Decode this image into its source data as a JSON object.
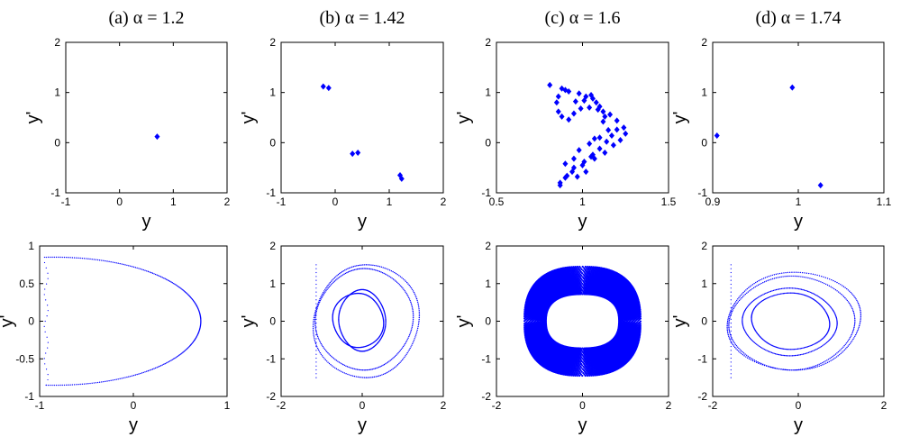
{
  "chart_data": [
    {
      "type": "scatter",
      "title": "(a) α = 1.2",
      "xlabel": "y",
      "ylabel": "y'",
      "xlim": [
        -1,
        2
      ],
      "ylim": [
        -1,
        2
      ],
      "xticks": [
        "-1",
        "0",
        "1",
        "2"
      ],
      "yticks": [
        "-1",
        "0",
        "1",
        "2"
      ],
      "grid": false,
      "marker": "diamond",
      "color": "#0000ff",
      "points": [
        [
          0.7,
          0.12
        ]
      ]
    },
    {
      "type": "scatter",
      "title": "(b) α = 1.42",
      "xlabel": "y",
      "ylabel": "y'",
      "xlim": [
        -1,
        2
      ],
      "ylim": [
        -1,
        2
      ],
      "xticks": [
        "-1",
        "0",
        "1",
        "2"
      ],
      "yticks": [
        "-1",
        "0",
        "1",
        "2"
      ],
      "grid": false,
      "marker": "diamond",
      "color": "#0000ff",
      "points": [
        [
          -0.22,
          1.12
        ],
        [
          -0.12,
          1.09
        ],
        [
          0.32,
          -0.22
        ],
        [
          0.42,
          -0.2
        ],
        [
          1.2,
          -0.65
        ],
        [
          1.23,
          -0.72
        ]
      ]
    },
    {
      "type": "scatter",
      "title": "(c) α = 1.6",
      "xlabel": "y",
      "ylabel": "y'",
      "xlim": [
        0.5,
        1.5
      ],
      "ylim": [
        -1,
        2
      ],
      "xticks": [
        "0.5",
        "1",
        "1.5"
      ],
      "yticks": [
        "-1",
        "0",
        "1",
        "2"
      ],
      "grid": false,
      "marker": "diamond",
      "color": "#0000ff",
      "points": [
        [
          0.81,
          1.15
        ],
        [
          0.88,
          1.08
        ],
        [
          0.92,
          1.02
        ],
        [
          0.98,
          0.98
        ],
        [
          1.02,
          0.92
        ],
        [
          1.06,
          0.88
        ],
        [
          1.08,
          0.8
        ],
        [
          1.1,
          0.72
        ],
        [
          1.12,
          0.62
        ],
        [
          1.13,
          0.52
        ],
        [
          0.86,
          0.92
        ],
        [
          0.85,
          0.8
        ],
        [
          0.86,
          0.62
        ],
        [
          0.88,
          0.52
        ],
        [
          0.92,
          0.46
        ],
        [
          0.95,
          0.58
        ],
        [
          0.99,
          0.68
        ],
        [
          1.04,
          0.7
        ],
        [
          1.09,
          0.66
        ],
        [
          1.16,
          0.56
        ],
        [
          1.2,
          0.44
        ],
        [
          1.24,
          0.3
        ],
        [
          1.25,
          0.18
        ],
        [
          1.22,
          0.05
        ],
        [
          1.18,
          -0.05
        ],
        [
          1.13,
          -0.2
        ],
        [
          1.07,
          -0.32
        ],
        [
          1.0,
          -0.45
        ],
        [
          0.94,
          -0.58
        ],
        [
          0.9,
          -0.7
        ],
        [
          0.87,
          -0.8
        ],
        [
          0.87,
          -0.85
        ],
        [
          0.91,
          -0.66
        ],
        [
          0.95,
          -0.5
        ],
        [
          1.01,
          -0.38
        ],
        [
          1.06,
          -0.24
        ],
        [
          1.1,
          -0.12
        ],
        [
          1.14,
          0.02
        ],
        [
          1.17,
          0.14
        ],
        [
          1.15,
          0.25
        ],
        [
          1.1,
          0.1
        ],
        [
          1.04,
          -0.02
        ],
        [
          0.98,
          -0.15
        ],
        [
          0.95,
          -0.32
        ],
        [
          0.96,
          0.82
        ],
        [
          1.01,
          0.84
        ],
        [
          0.9,
          1.05
        ],
        [
          1.05,
          0.95
        ],
        [
          0.9,
          -0.42
        ],
        [
          1.02,
          -0.58
        ],
        [
          0.97,
          -0.68
        ],
        [
          1.05,
          -0.28
        ],
        [
          1.12,
          0.42
        ],
        [
          1.2,
          0.26
        ],
        [
          1.07,
          0.08
        ]
      ]
    },
    {
      "type": "scatter",
      "title": "(d) α = 1.74",
      "xlabel": "y",
      "ylabel": "y'",
      "xlim": [
        0.9,
        1.1
      ],
      "ylim": [
        -1,
        2
      ],
      "xticks": [
        "0.9",
        "1",
        "1.1"
      ],
      "yticks": [
        "-1",
        "0",
        "1",
        "2"
      ],
      "grid": false,
      "marker": "diamond",
      "color": "#0000ff",
      "points": [
        [
          0.905,
          0.14
        ],
        [
          0.993,
          1.1
        ],
        [
          1.026,
          -0.85
        ]
      ]
    },
    {
      "type": "scatter",
      "xlabel": "y",
      "ylabel": "y'",
      "xlim": [
        -1,
        1
      ],
      "ylim": [
        -1,
        1
      ],
      "xticks": [
        "-1",
        "0",
        "1"
      ],
      "yticks": [
        "-1",
        "-0.5",
        "0",
        "0.5",
        "1"
      ],
      "grid": false,
      "marker": "dot",
      "color": "#0000ff",
      "attractor": {
        "form": "half-loop",
        "cx": -0.93,
        "cy": 0.0,
        "rx": 1.65,
        "ry": 0.85
      }
    },
    {
      "type": "scatter",
      "xlabel": "y",
      "ylabel": "y'",
      "xlim": [
        -2,
        2
      ],
      "ylim": [
        -2,
        2
      ],
      "xticks": [
        "-2",
        "0",
        "2"
      ],
      "yticks": [
        "-2",
        "-1",
        "0",
        "1",
        "2"
      ],
      "grid": false,
      "marker": "dot",
      "color": "#0000ff",
      "attractor": {
        "form": "multi-loop",
        "loops": [
          [
            0.1,
            0.0,
            1.3,
            1.5
          ],
          [
            0.05,
            0.05,
            1.15,
            1.35
          ],
          [
            0.0,
            0.02,
            0.55,
            0.82
          ],
          [
            -0.1,
            0.02,
            0.62,
            0.72
          ]
        ]
      }
    },
    {
      "type": "scatter",
      "xlabel": "y",
      "ylabel": "y'",
      "xlim": [
        -2,
        2
      ],
      "ylim": [
        -2,
        2
      ],
      "xticks": [
        "-2",
        "0",
        "2"
      ],
      "yticks": [
        "-2",
        "-1",
        "0",
        "1",
        "2"
      ],
      "grid": false,
      "marker": "dot",
      "color": "#0000ff",
      "attractor": {
        "form": "filled-band",
        "cx": 0.0,
        "cy": 0.0,
        "outer_rx": 1.35,
        "outer_ry": 1.45,
        "inner_rx": 0.85,
        "inner_ry": 0.72
      }
    },
    {
      "type": "scatter",
      "xlabel": "y",
      "ylabel": "y'",
      "xlim": [
        -2,
        2
      ],
      "ylim": [
        -2,
        2
      ],
      "xticks": [
        "-2",
        "0",
        "2"
      ],
      "yticks": [
        "-2",
        "-1",
        "0",
        "1",
        "2"
      ],
      "grid": false,
      "marker": "dot",
      "color": "#0000ff",
      "attractor": {
        "form": "multi-loop",
        "loops": [
          [
            -0.1,
            0.0,
            1.55,
            1.3
          ],
          [
            -0.15,
            -0.05,
            1.4,
            1.25
          ],
          [
            -0.2,
            -0.02,
            1.05,
            0.9
          ],
          [
            -0.18,
            0.0,
            0.9,
            0.75
          ]
        ]
      }
    }
  ]
}
